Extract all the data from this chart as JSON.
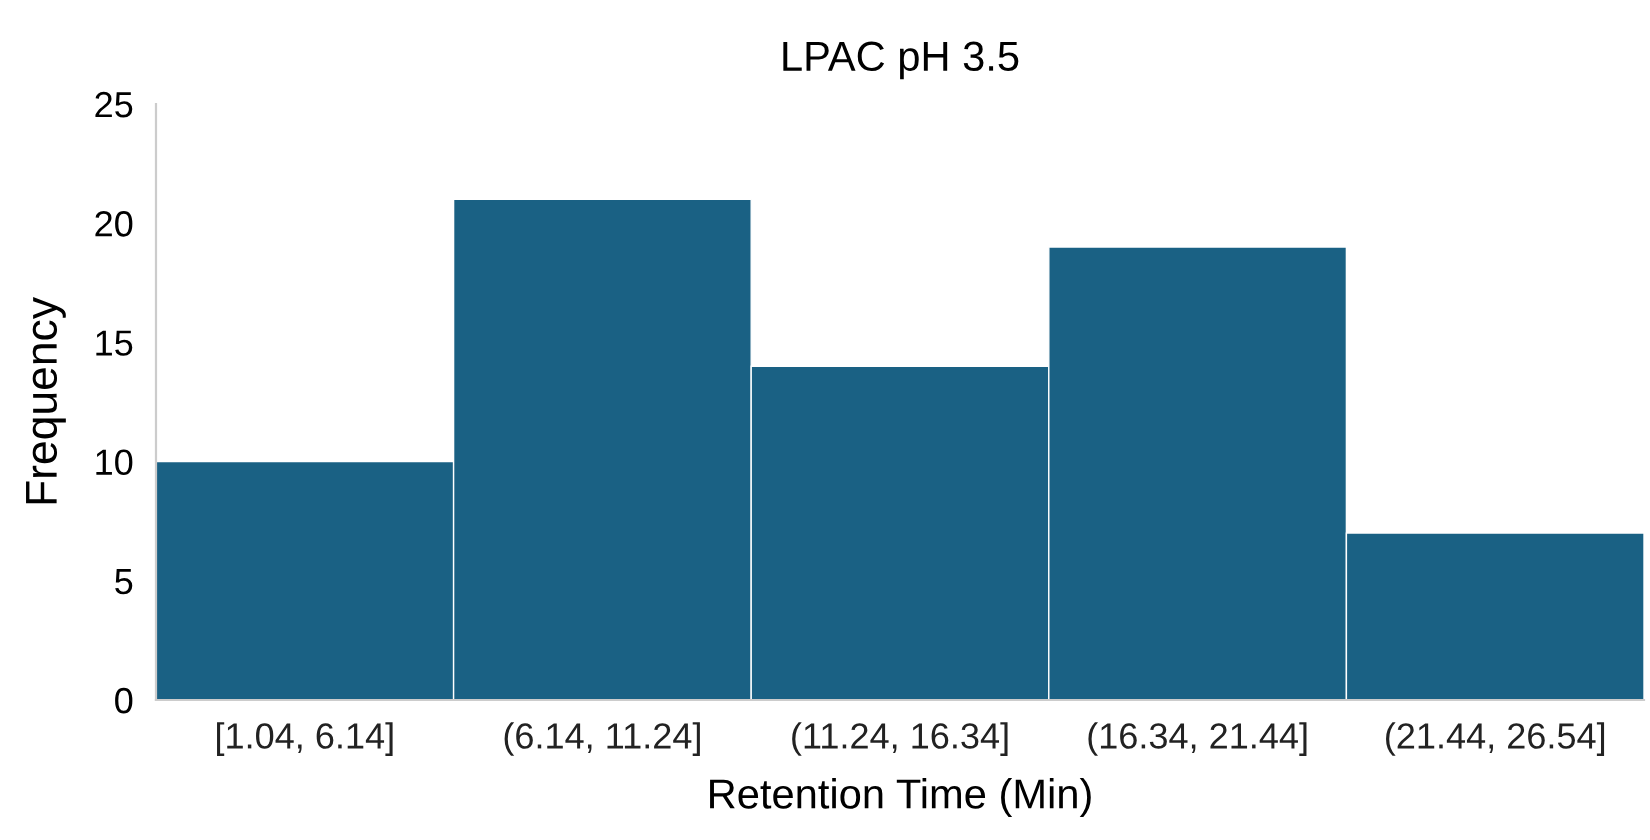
{
  "chart_data": {
    "type": "bar",
    "title": "LPAC pH 3.5",
    "xlabel": "Retention Time (Min)",
    "ylabel": "Frequency",
    "categories": [
      "[1.04, 6.14]",
      "(6.14, 11.24]",
      "(11.24, 16.34]",
      "(16.34, 21.44]",
      "(21.44, 26.54]"
    ],
    "values": [
      10,
      21,
      14,
      19,
      7
    ],
    "color": "#1a6184",
    "ylim": [
      0,
      25
    ],
    "yticks": [
      0,
      5,
      10,
      15,
      20,
      25
    ],
    "grid": false,
    "legend": false
  }
}
